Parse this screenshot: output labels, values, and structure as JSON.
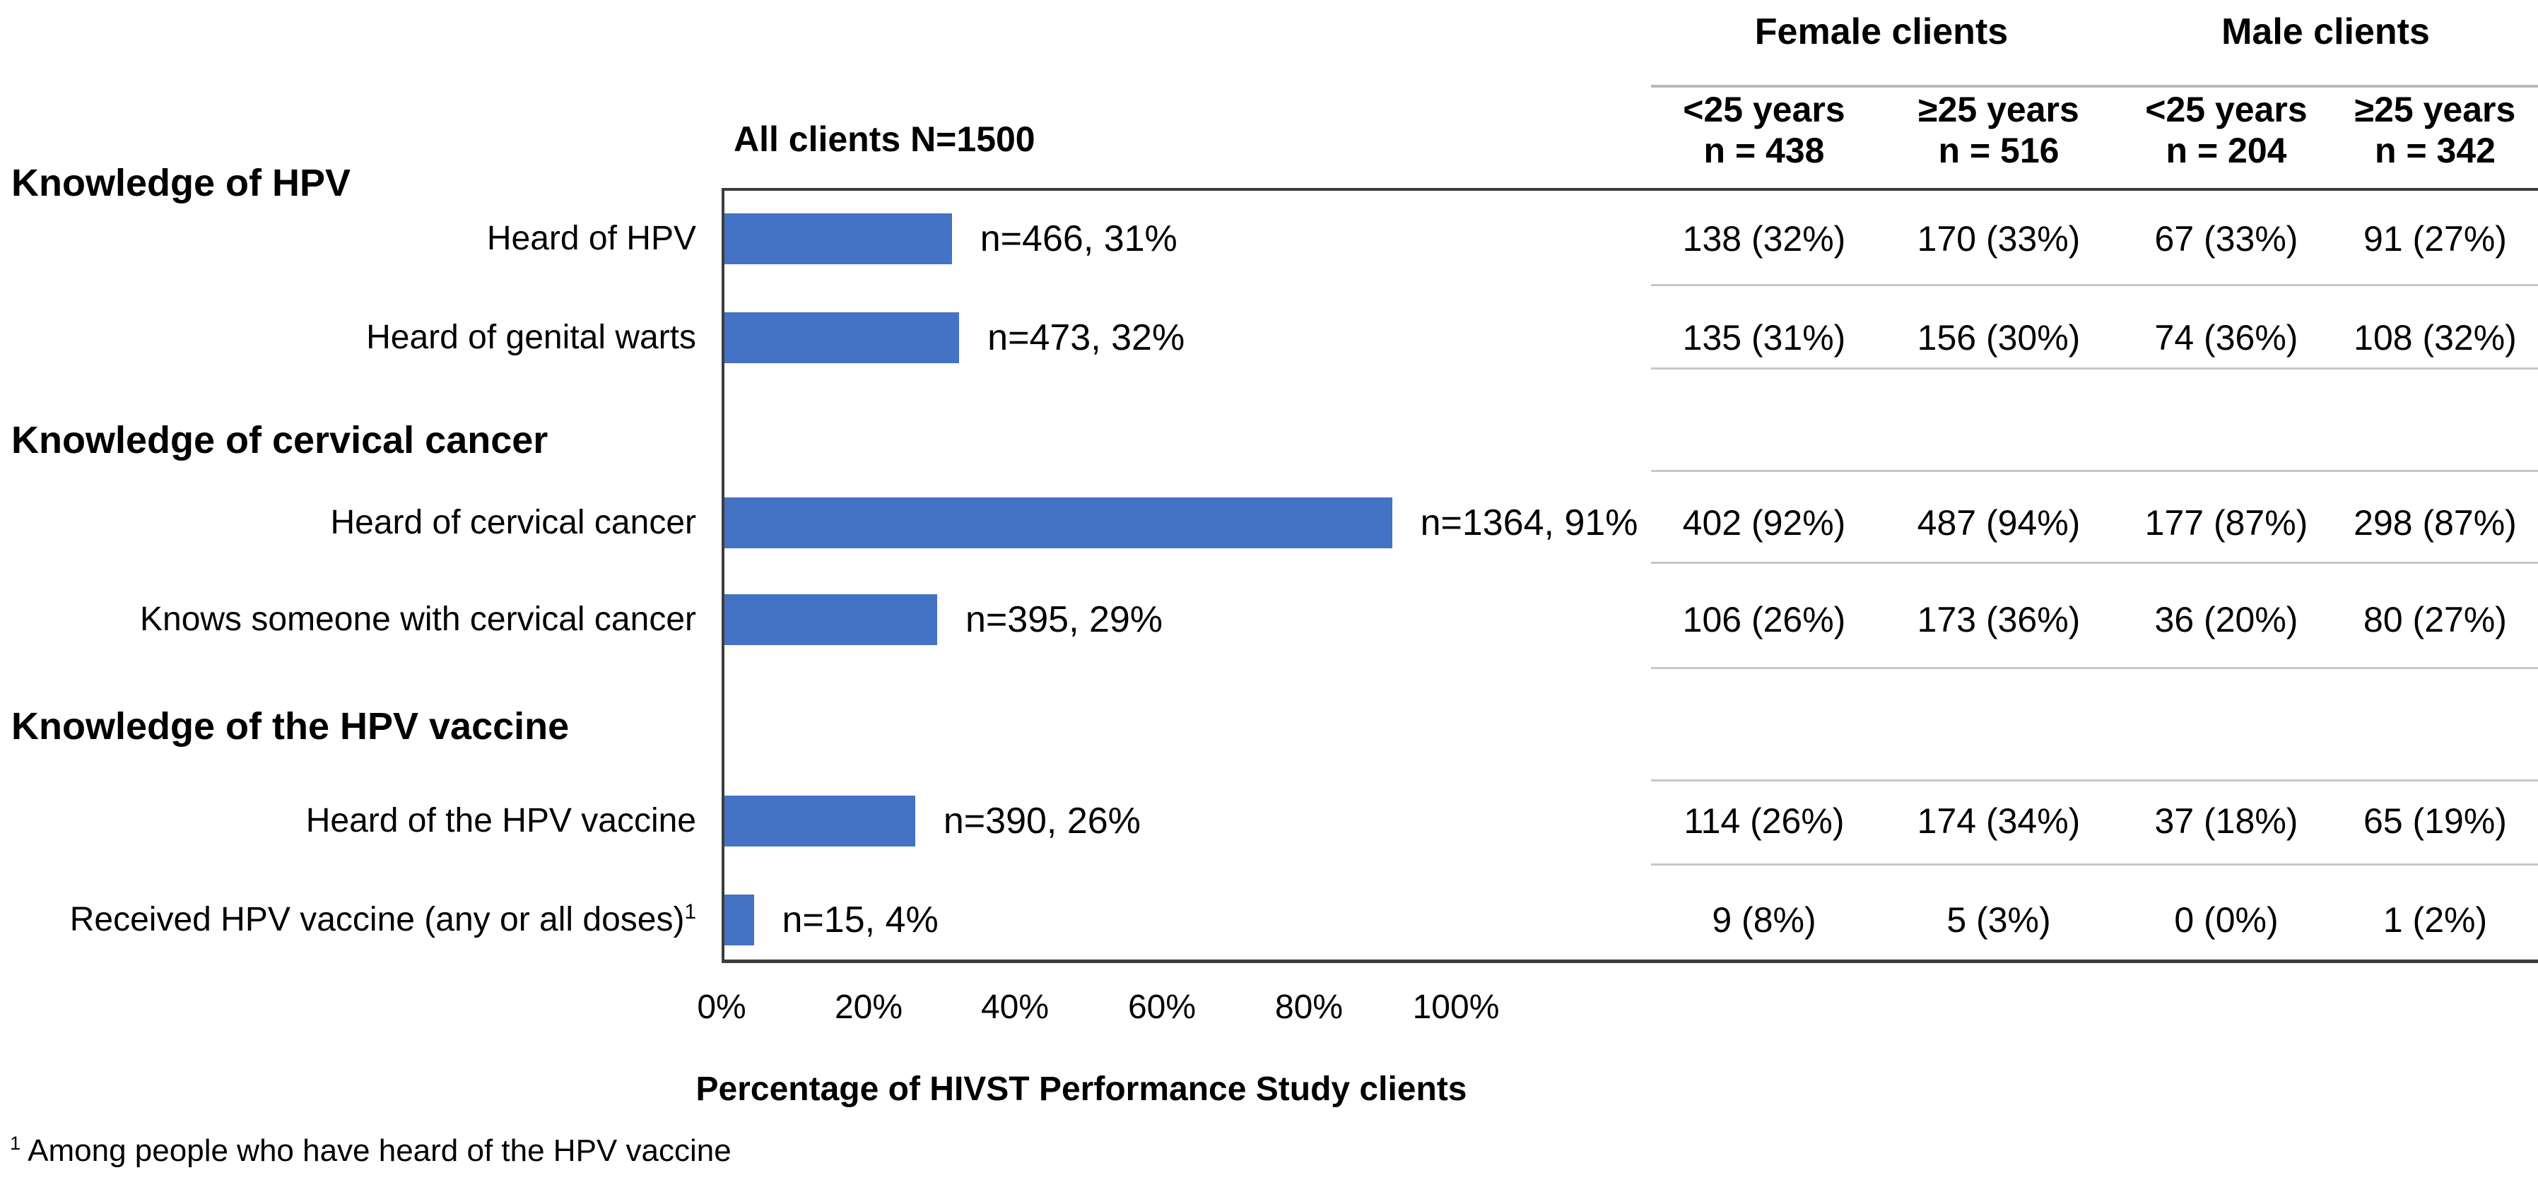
{
  "figure": {
    "footnote_marker": "1",
    "footnote_text": "Among people who have heard of the HPV vaccine"
  },
  "table_header": {
    "female_group": "Female clients",
    "male_group": "Male clients",
    "columns": [
      {
        "age": "<25 years",
        "n": "n = 438"
      },
      {
        "age": "≥25 years",
        "n": "n = 516"
      },
      {
        "age": "<25 years",
        "n": "n = 204"
      },
      {
        "age": "≥25 years",
        "n": "n = 342"
      }
    ]
  },
  "chart_data": {
    "type": "bar",
    "orientation": "horizontal",
    "title": "All clients N=1500",
    "total_N": 1500,
    "xlabel": "Percentage of HIVST Performance Study clients",
    "xlim": [
      0,
      100
    ],
    "xtick_labels": [
      "0%",
      "20%",
      "40%",
      "60%",
      "80%",
      "100%"
    ],
    "grid": false,
    "bar_color": "#4472C4",
    "sections": [
      {
        "header": "Knowledge of HPV",
        "rows": [
          {
            "label": "Heard of HPV",
            "n": 466,
            "pct": 31,
            "bar_label": "n=466, 31%",
            "cells": [
              "138 (32%)",
              "170 (33%)",
              "67 (33%)",
              "91 (27%)"
            ]
          },
          {
            "label": "Heard of genital warts",
            "n": 473,
            "pct": 32,
            "bar_label": "n=473, 32%",
            "cells": [
              "135 (31%)",
              "156 (30%)",
              "74 (36%)",
              "108 (32%)"
            ]
          }
        ]
      },
      {
        "header": "Knowledge of cervical cancer",
        "rows": [
          {
            "label": "Heard of cervical cancer",
            "n": 1364,
            "pct": 91,
            "bar_label": "n=1364, 91%",
            "cells": [
              "402 (92%)",
              "487 (94%)",
              "177 (87%)",
              "298 (87%)"
            ]
          },
          {
            "label": "Knows someone with cervical cancer",
            "n": 395,
            "pct": 29,
            "bar_label": "n=395, 29%",
            "cells": [
              "106 (26%)",
              "173 (36%)",
              "36 (20%)",
              "80 (27%)"
            ]
          }
        ]
      },
      {
        "header": "Knowledge of the HPV vaccine",
        "rows": [
          {
            "label": "Heard of the HPV vaccine",
            "n": 390,
            "pct": 26,
            "bar_label": "n=390, 26%",
            "cells": [
              "114 (26%)",
              "174 (34%)",
              "37 (18%)",
              "65 (19%)"
            ]
          },
          {
            "label": "Received HPV vaccine (any or all doses)",
            "sup": "1",
            "n": 15,
            "pct": 4,
            "bar_label": "n=15, 4%",
            "cells": [
              "9 (8%)",
              "5 (3%)",
              "0 (0%)",
              "1 (2%)"
            ]
          }
        ]
      }
    ]
  }
}
